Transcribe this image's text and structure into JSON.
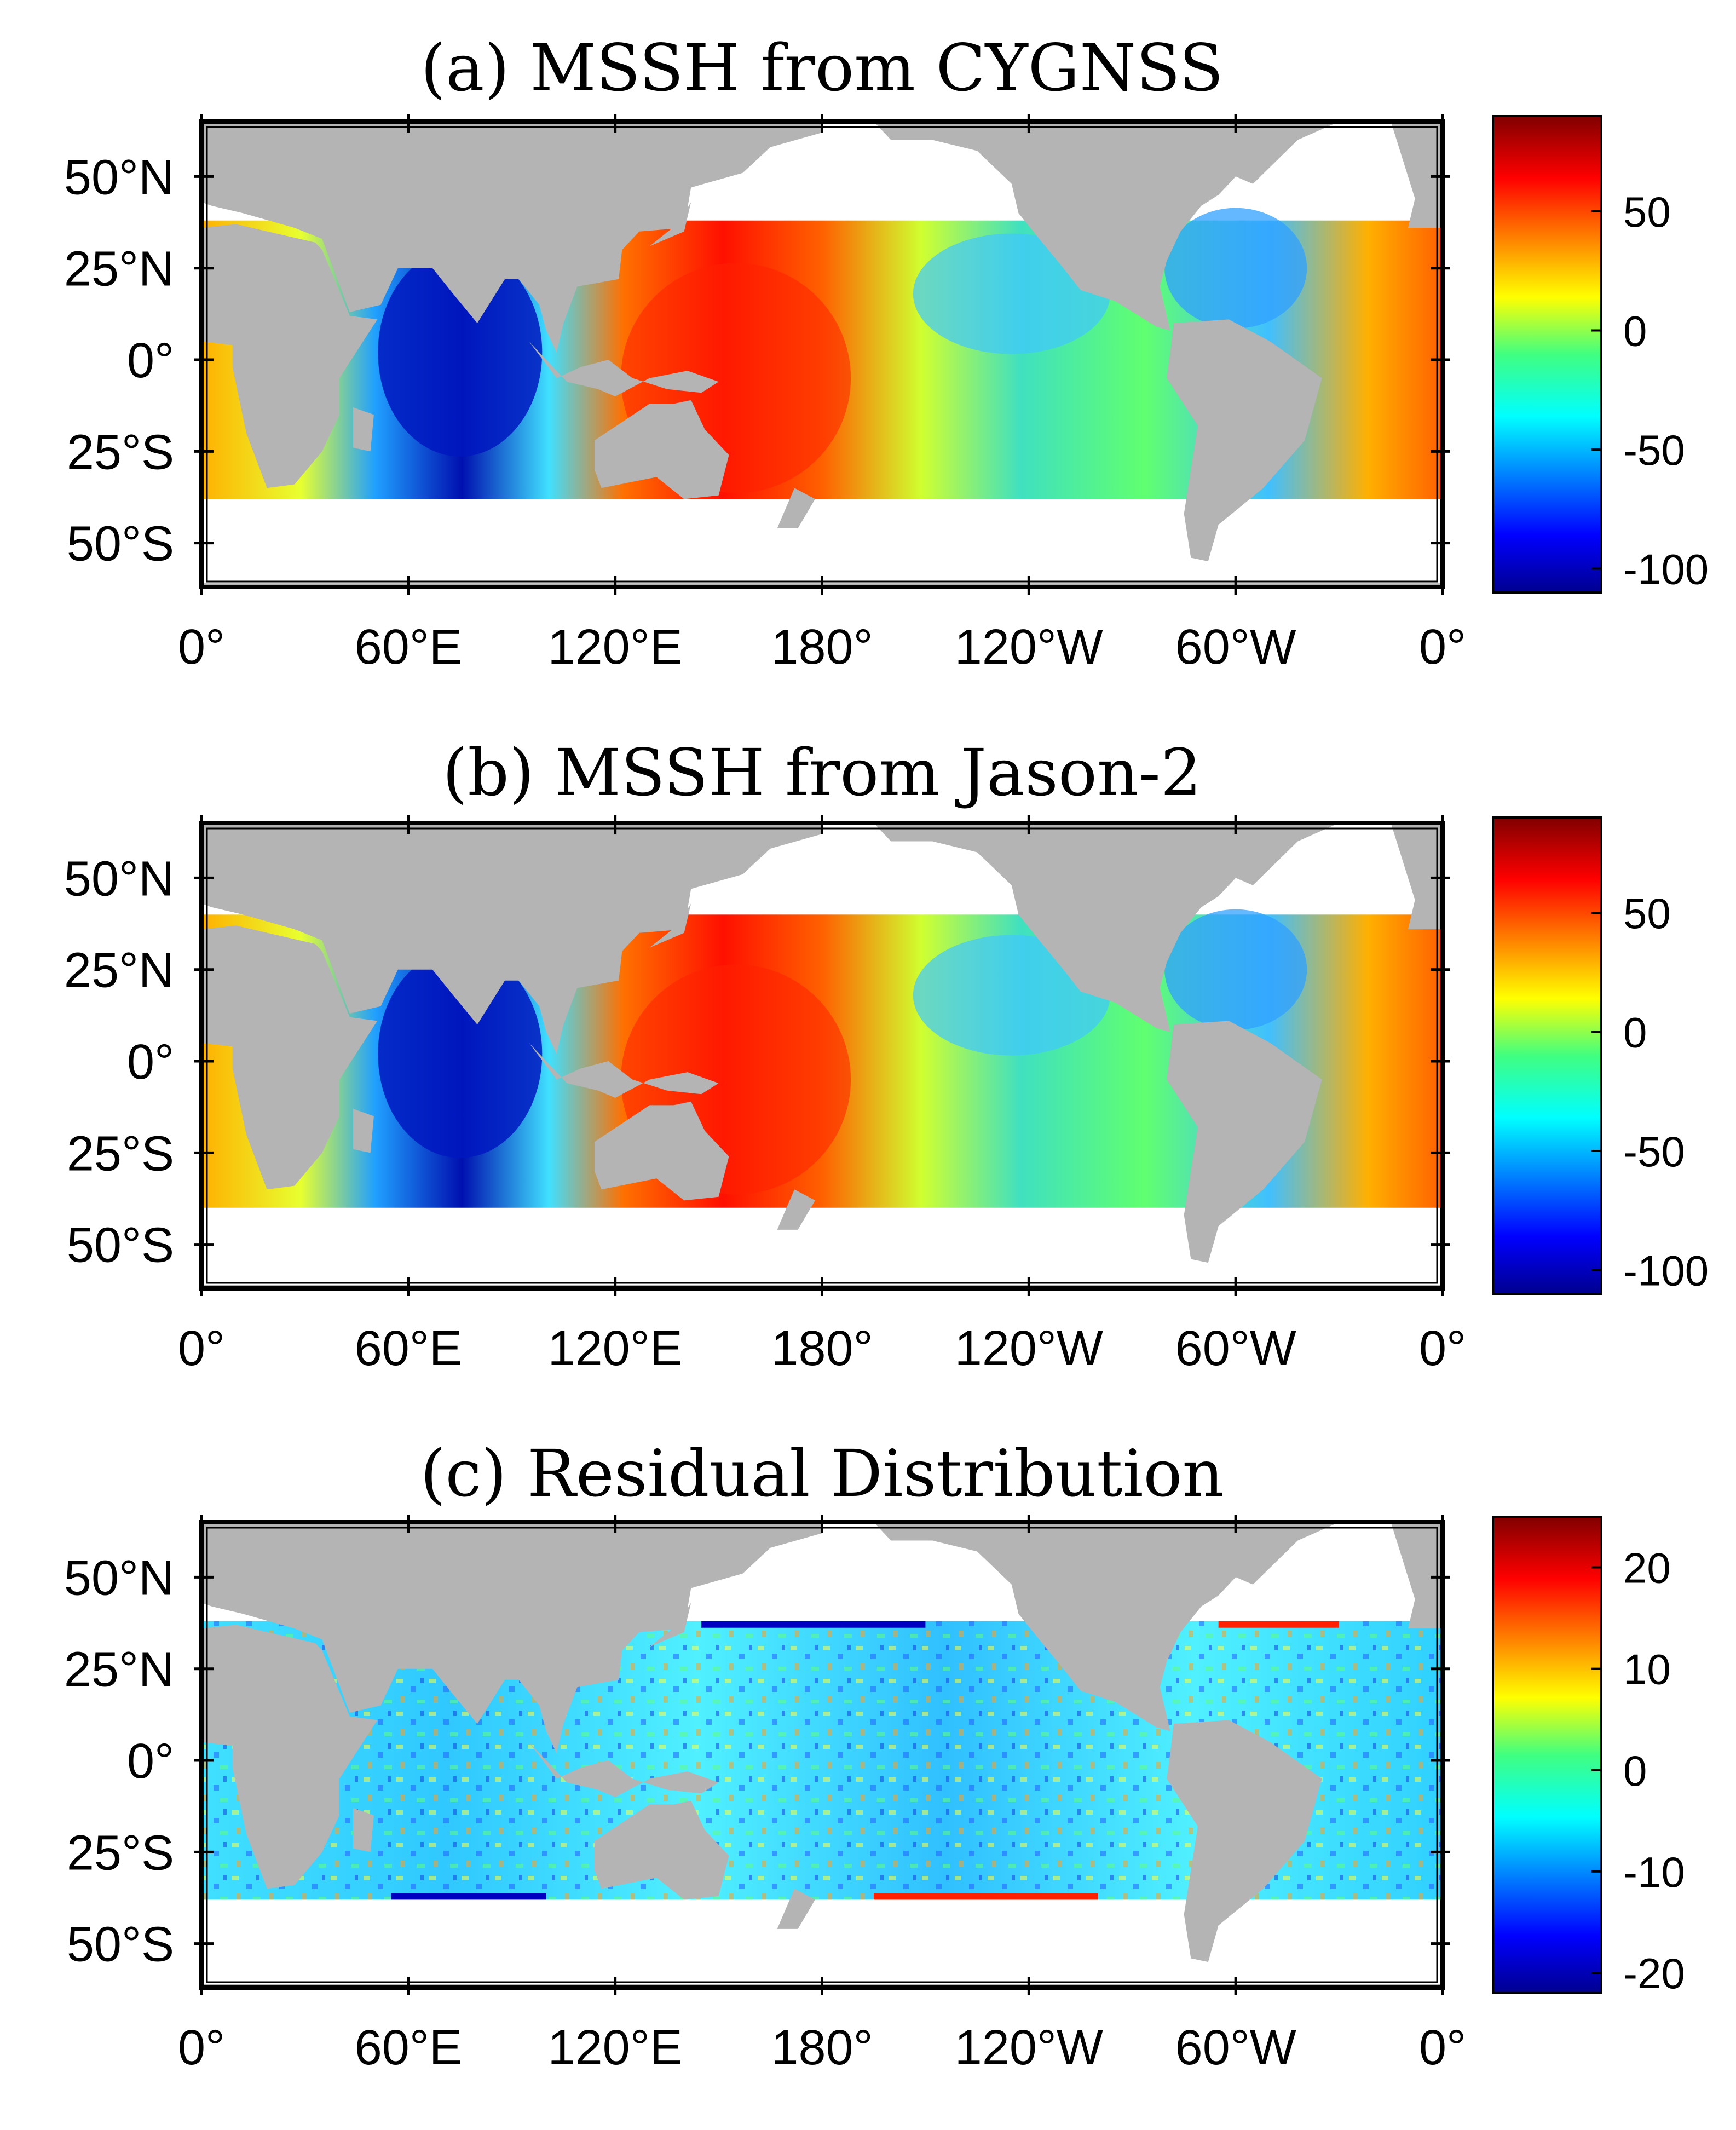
{
  "figure": {
    "panels": [
      {
        "title": "(a) MSSH from CYGNSS",
        "colorbar_ticks": [
          "50",
          "0",
          "-50",
          "-100"
        ],
        "colorbar_tick_values": [
          50,
          0,
          -50,
          -100
        ],
        "colorbar_range": [
          -110,
          90
        ],
        "coverage_lat": [
          -38,
          38
        ],
        "pattern": "mssh"
      },
      {
        "title": "(b) MSSH from Jason-2",
        "colorbar_ticks": [
          "50",
          "0",
          "-50",
          "-100"
        ],
        "colorbar_tick_values": [
          50,
          0,
          -50,
          -100
        ],
        "colorbar_range": [
          -110,
          90
        ],
        "coverage_lat": [
          -40,
          40
        ],
        "pattern": "mssh"
      },
      {
        "title": "(c) Residual Distribution",
        "colorbar_ticks": [
          "20",
          "10",
          "0",
          "-10",
          "-20"
        ],
        "colorbar_tick_values": [
          20,
          10,
          0,
          -10,
          -20
        ],
        "colorbar_range": [
          -22,
          25
        ],
        "coverage_lat": [
          -38,
          38
        ],
        "pattern": "residual"
      }
    ],
    "lat_labels": [
      "50°N",
      "25°N",
      "0°",
      "25°S",
      "50°S"
    ],
    "lat_values": [
      50,
      25,
      0,
      -25,
      -50
    ],
    "lon_labels": [
      "0°",
      "60°E",
      "120°E",
      "180°",
      "120°W",
      "60°W",
      "0°"
    ],
    "lon_values": [
      0,
      60,
      120,
      180,
      240,
      300,
      360
    ],
    "map_lat_range": [
      -62,
      65
    ],
    "map_lon_range": [
      0,
      360
    ],
    "colors": {
      "land": "#b4b4b4",
      "no_data": "#ffffff",
      "frame": "#000000",
      "colormap": [
        "#00008f",
        "#0000ff",
        "#00ffff",
        "#00ff80",
        "#ffff00",
        "#ff8000",
        "#ff0000",
        "#800000"
      ]
    }
  }
}
